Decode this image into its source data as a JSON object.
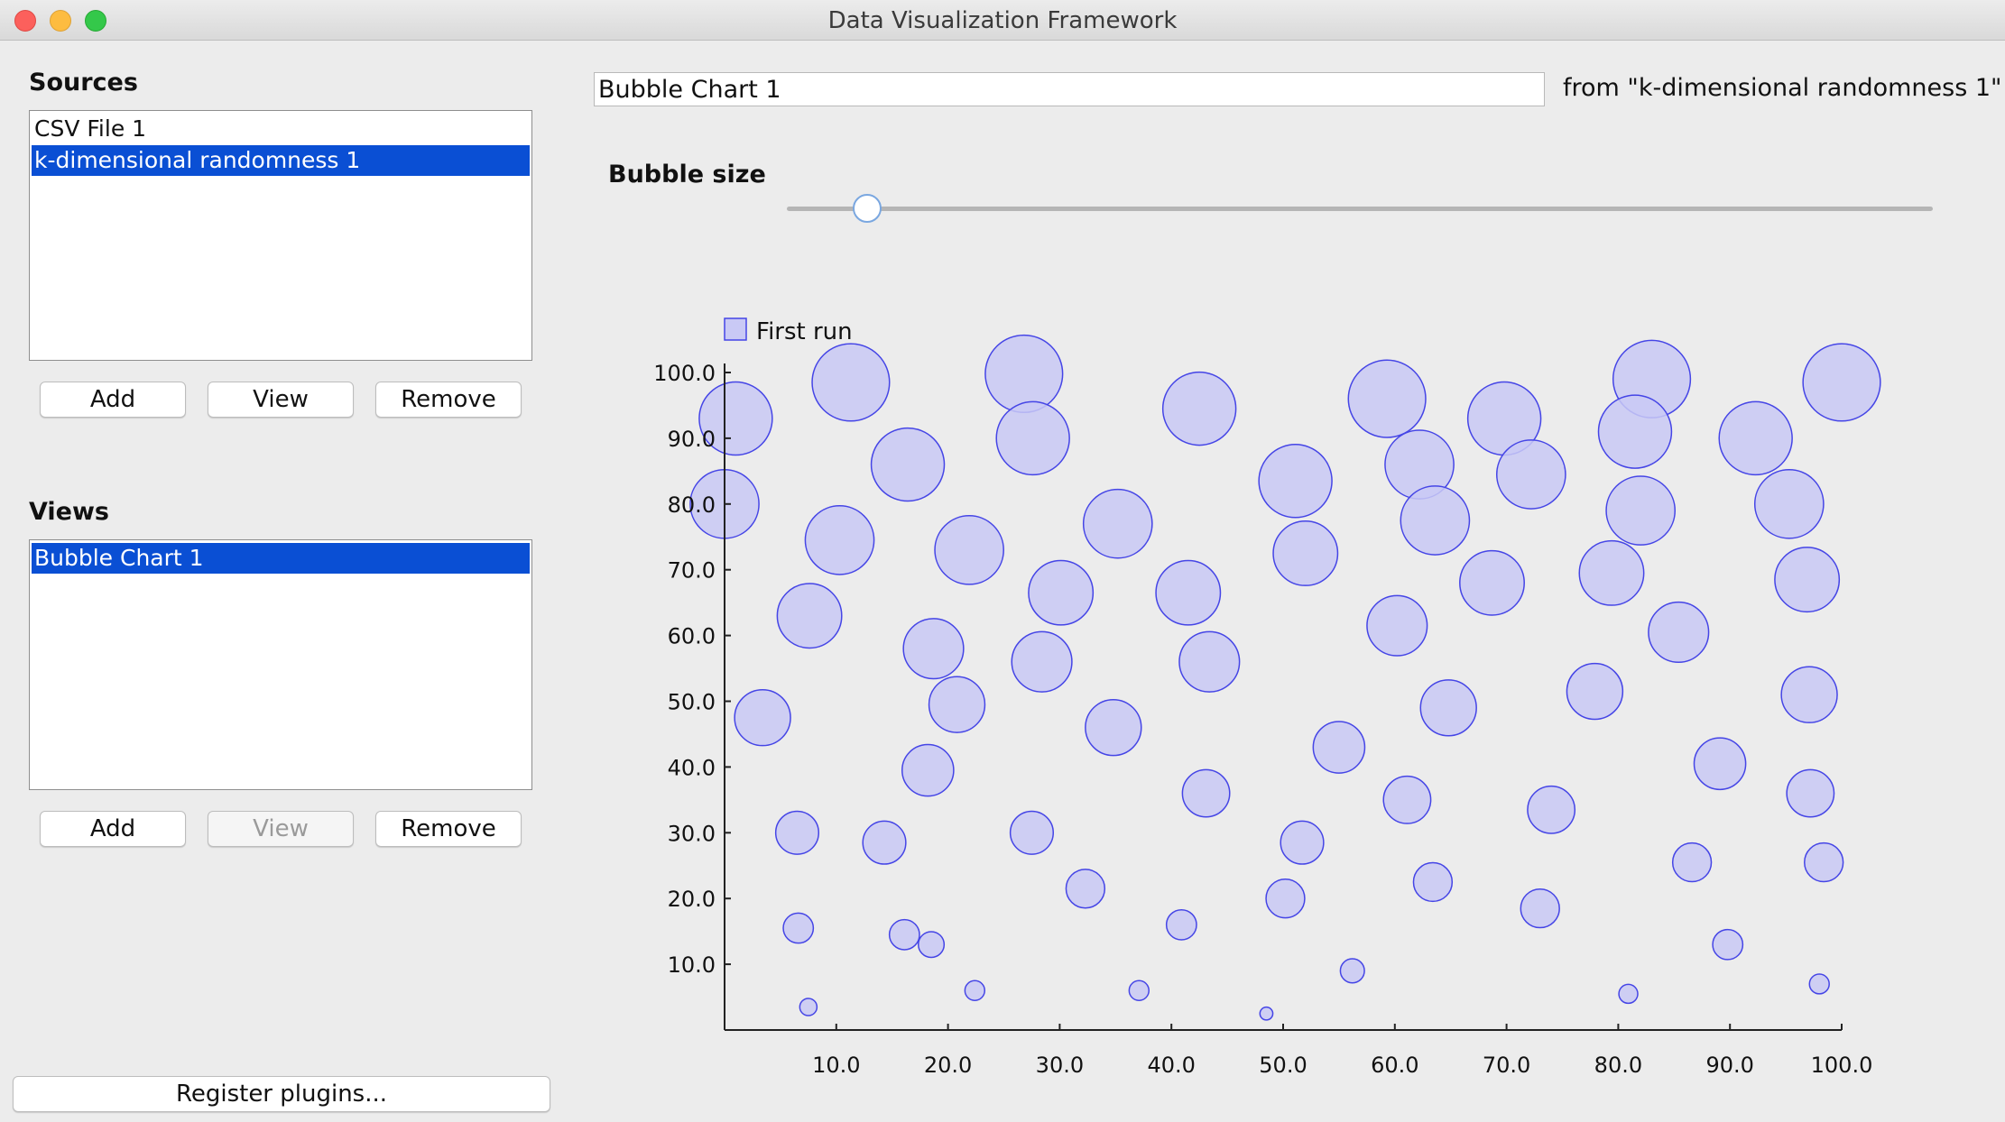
{
  "window": {
    "title": "Data Visualization Framework"
  },
  "sources": {
    "heading": "Sources",
    "items": [
      {
        "label": "CSV File 1",
        "selected": false
      },
      {
        "label": "k-dimensional randomness 1",
        "selected": true
      }
    ],
    "buttons": {
      "add": "Add",
      "view": "View",
      "remove": "Remove"
    }
  },
  "views": {
    "heading": "Views",
    "items": [
      {
        "label": "Bubble Chart 1",
        "selected": true
      }
    ],
    "buttons": {
      "add": "Add",
      "view": "View",
      "remove": "Remove"
    },
    "view_disabled": true
  },
  "register_button": "Register plugins...",
  "chart_name": {
    "value": "Bubble Chart 1",
    "from_label": "from \"k-dimensional randomness 1\""
  },
  "bubble_size": {
    "label": "Bubble size",
    "slider_value": 0.07
  },
  "colors": {
    "bubble_fill": "#c9c9f5",
    "bubble_stroke": "#4545e6",
    "selection": "#0a4fd4"
  },
  "chart_data": {
    "type": "scatter",
    "series": [
      {
        "name": "First run",
        "points": [
          {
            "x": 1.0,
            "y": 93.0,
            "r": 8.5
          },
          {
            "x": 11.3,
            "y": 98.5,
            "r": 9.0
          },
          {
            "x": 26.8,
            "y": 99.8,
            "r": 9.0
          },
          {
            "x": 42.5,
            "y": 94.5,
            "r": 8.5
          },
          {
            "x": 59.3,
            "y": 96.0,
            "r": 9.0
          },
          {
            "x": 69.8,
            "y": 93.0,
            "r": 8.5
          },
          {
            "x": 83.0,
            "y": 99.0,
            "r": 9.0
          },
          {
            "x": 100.0,
            "y": 98.5,
            "r": 9.0
          },
          {
            "x": 27.6,
            "y": 90.0,
            "r": 8.5
          },
          {
            "x": 16.4,
            "y": 86.0,
            "r": 8.5
          },
          {
            "x": 51.1,
            "y": 83.5,
            "r": 8.5
          },
          {
            "x": 62.2,
            "y": 86.0,
            "r": 8.0
          },
          {
            "x": 72.2,
            "y": 84.5,
            "r": 8.0
          },
          {
            "x": 81.5,
            "y": 91.0,
            "r": 8.5
          },
          {
            "x": 92.3,
            "y": 90.0,
            "r": 8.5
          },
          {
            "x": 0.0,
            "y": 80.0,
            "r": 8.0
          },
          {
            "x": 10.3,
            "y": 74.5,
            "r": 8.0
          },
          {
            "x": 21.9,
            "y": 73.0,
            "r": 8.0
          },
          {
            "x": 35.2,
            "y": 77.0,
            "r": 8.0
          },
          {
            "x": 52.0,
            "y": 72.5,
            "r": 7.5
          },
          {
            "x": 63.6,
            "y": 77.5,
            "r": 8.0
          },
          {
            "x": 82.0,
            "y": 79.0,
            "r": 8.0
          },
          {
            "x": 95.3,
            "y": 80.0,
            "r": 8.0
          },
          {
            "x": 7.6,
            "y": 63.0,
            "r": 7.5
          },
          {
            "x": 30.1,
            "y": 66.5,
            "r": 7.5
          },
          {
            "x": 41.5,
            "y": 66.5,
            "r": 7.5
          },
          {
            "x": 60.2,
            "y": 61.5,
            "r": 7.0
          },
          {
            "x": 68.7,
            "y": 68.0,
            "r": 7.5
          },
          {
            "x": 79.4,
            "y": 69.5,
            "r": 7.5
          },
          {
            "x": 96.9,
            "y": 68.5,
            "r": 7.5
          },
          {
            "x": 18.7,
            "y": 58.0,
            "r": 7.0
          },
          {
            "x": 28.4,
            "y": 56.0,
            "r": 7.0
          },
          {
            "x": 43.4,
            "y": 56.0,
            "r": 7.0
          },
          {
            "x": 85.4,
            "y": 60.5,
            "r": 7.0
          },
          {
            "x": 3.4,
            "y": 47.5,
            "r": 6.5
          },
          {
            "x": 20.8,
            "y": 49.5,
            "r": 6.5
          },
          {
            "x": 34.8,
            "y": 46.0,
            "r": 6.5
          },
          {
            "x": 64.8,
            "y": 49.0,
            "r": 6.5
          },
          {
            "x": 77.9,
            "y": 51.5,
            "r": 6.5
          },
          {
            "x": 97.1,
            "y": 51.0,
            "r": 6.5
          },
          {
            "x": 18.2,
            "y": 39.5,
            "r": 6.0
          },
          {
            "x": 43.1,
            "y": 36.0,
            "r": 5.5
          },
          {
            "x": 55.0,
            "y": 43.0,
            "r": 6.0
          },
          {
            "x": 61.1,
            "y": 35.0,
            "r": 5.5
          },
          {
            "x": 74.0,
            "y": 33.5,
            "r": 5.5
          },
          {
            "x": 89.1,
            "y": 40.5,
            "r": 6.0
          },
          {
            "x": 97.2,
            "y": 36.0,
            "r": 5.5
          },
          {
            "x": 6.5,
            "y": 30.0,
            "r": 5.0
          },
          {
            "x": 14.3,
            "y": 28.5,
            "r": 5.0
          },
          {
            "x": 27.5,
            "y": 30.0,
            "r": 5.0
          },
          {
            "x": 51.7,
            "y": 28.5,
            "r": 5.0
          },
          {
            "x": 32.3,
            "y": 21.5,
            "r": 4.5
          },
          {
            "x": 50.2,
            "y": 20.0,
            "r": 4.5
          },
          {
            "x": 63.4,
            "y": 22.5,
            "r": 4.5
          },
          {
            "x": 73.0,
            "y": 18.5,
            "r": 4.5
          },
          {
            "x": 86.6,
            "y": 25.5,
            "r": 4.5
          },
          {
            "x": 98.4,
            "y": 25.5,
            "r": 4.5
          },
          {
            "x": 6.6,
            "y": 15.5,
            "r": 3.5
          },
          {
            "x": 16.1,
            "y": 14.5,
            "r": 3.5
          },
          {
            "x": 18.5,
            "y": 13.0,
            "r": 3.0
          },
          {
            "x": 40.9,
            "y": 16.0,
            "r": 3.5
          },
          {
            "x": 89.8,
            "y": 13.0,
            "r": 3.5
          },
          {
            "x": 22.4,
            "y": 6.0,
            "r": 2.3
          },
          {
            "x": 37.1,
            "y": 6.0,
            "r": 2.3
          },
          {
            "x": 56.2,
            "y": 9.0,
            "r": 2.8
          },
          {
            "x": 80.9,
            "y": 5.5,
            "r": 2.2
          },
          {
            "x": 98.0,
            "y": 7.0,
            "r": 2.3
          },
          {
            "x": 7.5,
            "y": 3.5,
            "r": 2.0
          },
          {
            "x": 48.5,
            "y": 2.5,
            "r": 1.5
          }
        ]
      }
    ],
    "x_ticks": [
      "10.0",
      "20.0",
      "30.0",
      "40.0",
      "50.0",
      "60.0",
      "70.0",
      "80.0",
      "90.0",
      "100.0"
    ],
    "y_ticks": [
      "10.0",
      "20.0",
      "30.0",
      "40.0",
      "50.0",
      "60.0",
      "70.0",
      "80.0",
      "90.0",
      "100.0"
    ],
    "xlim": [
      0,
      100
    ],
    "ylim": [
      0,
      100
    ],
    "legend_position": "top-left",
    "grid": false
  }
}
